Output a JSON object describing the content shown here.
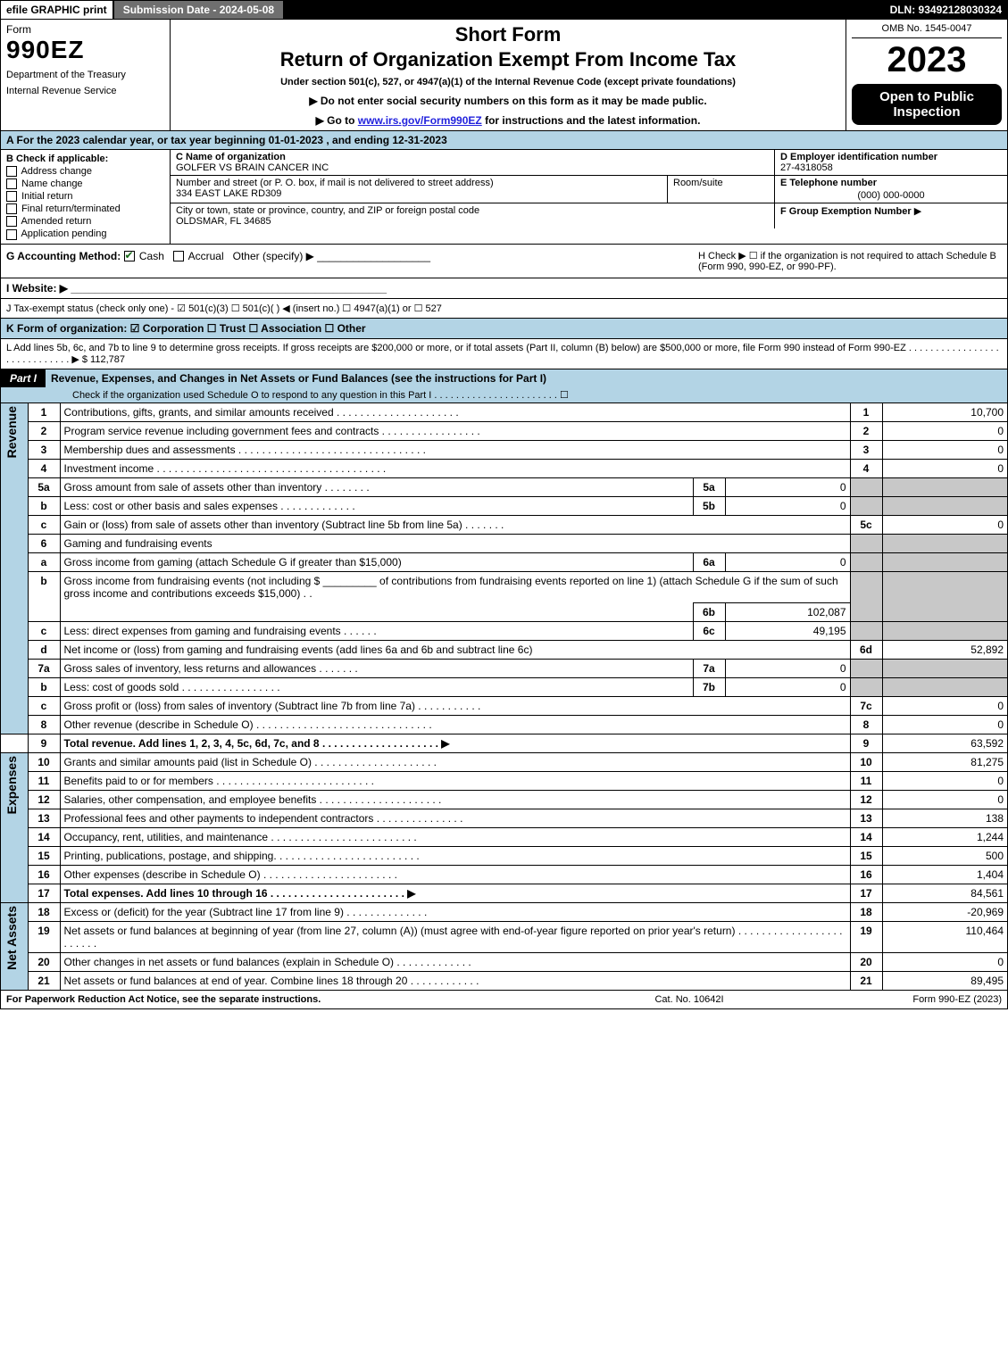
{
  "topbar": {
    "efile": "efile GRAPHIC print",
    "submission": "Submission Date - 2024-05-08",
    "dln": "DLN: 93492128030324"
  },
  "header": {
    "form_label": "Form",
    "form_num": "990EZ",
    "dept1": "Department of the Treasury",
    "dept2": "Internal Revenue Service",
    "shortform": "Short Form",
    "title2": "Return of Organization Exempt From Income Tax",
    "sub": "Under section 501(c), 527, or 4947(a)(1) of the Internal Revenue Code (except private foundations)",
    "sub2": "▶ Do not enter social security numbers on this form as it may be made public.",
    "sub3_pre": "▶ Go to ",
    "sub3_link": "www.irs.gov/Form990EZ",
    "sub3_post": " for instructions and the latest information.",
    "omb": "OMB No. 1545-0047",
    "year": "2023",
    "open": "Open to Public Inspection"
  },
  "a": "A  For the 2023 calendar year, or tax year beginning 01-01-2023 , and ending 12-31-2023",
  "b": {
    "label": "B  Check if applicable:",
    "opts": [
      "Address change",
      "Name change",
      "Initial return",
      "Final return/terminated",
      "Amended return",
      "Application pending"
    ]
  },
  "c": {
    "name_lbl": "C Name of organization",
    "name": "GOLFER VS BRAIN CANCER INC",
    "addr_lbl": "Number and street (or P. O. box, if mail is not delivered to street address)",
    "addr": "334 EAST LAKE RD309",
    "room_lbl": "Room/suite",
    "city_lbl": "City or town, state or province, country, and ZIP or foreign postal code",
    "city": "OLDSMAR, FL  34685"
  },
  "d": {
    "lbl": "D Employer identification number",
    "val": "27-4318058"
  },
  "e": {
    "lbl": "E Telephone number",
    "val": "(000) 000-0000"
  },
  "f": {
    "lbl": "F Group Exemption Number",
    "arrow": "▶"
  },
  "g": {
    "label": "G Accounting Method:",
    "cash": "Cash",
    "accrual": "Accrual",
    "other": "Other (specify) ▶"
  },
  "h": "H  Check ▶ ☐ if the organization is not required to attach Schedule B (Form 990, 990-EZ, or 990-PF).",
  "i": "I Website: ▶",
  "j": "J Tax-exempt status (check only one) - ☑ 501(c)(3)  ☐ 501(c)(  ) ◀ (insert no.)  ☐ 4947(a)(1) or  ☐ 527",
  "k": "K Form of organization:  ☑ Corporation  ☐ Trust  ☐ Association  ☐ Other",
  "l": {
    "text": "L Add lines 5b, 6c, and 7b to line 9 to determine gross receipts. If gross receipts are $200,000 or more, or if total assets (Part II, column (B) below) are $500,000 or more, file Form 990 instead of Form 990-EZ . . . . . . . . . . . . . . . . . . . . . . . . . . . . . ▶ $ ",
    "amount": "112,787"
  },
  "part1": {
    "tag": "Part I",
    "title": "Revenue, Expenses, and Changes in Net Assets or Fund Balances (see the instructions for Part I)",
    "sub": "Check if the organization used Schedule O to respond to any question in this Part I . . . . . . . . . . . . . . . . . . . . . . . ☐"
  },
  "side": {
    "rev": "Revenue",
    "exp": "Expenses",
    "na": "Net Assets"
  },
  "rows": {
    "r1": {
      "n": "1",
      "d": "Contributions, gifts, grants, and similar amounts received . . . . . . . . . . . . . . . . . . . . .",
      "on": "1",
      "ov": "10,700"
    },
    "r2": {
      "n": "2",
      "d": "Program service revenue including government fees and contracts . . . . . . . . . . . . . . . . .",
      "on": "2",
      "ov": "0"
    },
    "r3": {
      "n": "3",
      "d": "Membership dues and assessments . . . . . . . . . . . . . . . . . . . . . . . . . . . . . . . .",
      "on": "3",
      "ov": "0"
    },
    "r4": {
      "n": "4",
      "d": "Investment income . . . . . . . . . . . . . . . . . . . . . . . . . . . . . . . . . . . . . . .",
      "on": "4",
      "ov": "0"
    },
    "r5a": {
      "n": "5a",
      "d": "Gross amount from sale of assets other than inventory . . . . . . . .",
      "in": "5a",
      "iv": "0"
    },
    "r5b": {
      "n": "b",
      "d": "Less: cost or other basis and sales expenses . . . . . . . . . . . . .",
      "in": "5b",
      "iv": "0"
    },
    "r5c": {
      "n": "c",
      "d": "Gain or (loss) from sale of assets other than inventory (Subtract line 5b from line 5a) . . . . . . .",
      "on": "5c",
      "ov": "0"
    },
    "r6": {
      "n": "6",
      "d": "Gaming and fundraising events"
    },
    "r6a": {
      "n": "a",
      "d": "Gross income from gaming (attach Schedule G if greater than $15,000)",
      "in": "6a",
      "iv": "0"
    },
    "r6b": {
      "n": "b",
      "d1": "Gross income from fundraising events (not including $",
      "d2": "of contributions from fundraising events reported on line 1) (attach Schedule G if the sum of such gross income and contributions exceeds $15,000)    .  .",
      "in": "6b",
      "iv": "102,087"
    },
    "r6c": {
      "n": "c",
      "d": "Less: direct expenses from gaming and fundraising events . . . . . .",
      "in": "6c",
      "iv": "49,195"
    },
    "r6d": {
      "n": "d",
      "d": "Net income or (loss) from gaming and fundraising events (add lines 6a and 6b and subtract line 6c)",
      "on": "6d",
      "ov": "52,892"
    },
    "r7a": {
      "n": "7a",
      "d": "Gross sales of inventory, less returns and allowances  . . . . . . .",
      "in": "7a",
      "iv": "0"
    },
    "r7b": {
      "n": "b",
      "d": "Less: cost of goods sold         . . . . . . . . . . . . . . . . .",
      "in": "7b",
      "iv": "0"
    },
    "r7c": {
      "n": "c",
      "d": "Gross profit or (loss) from sales of inventory (Subtract line 7b from line 7a) . . . . . . . . . . .",
      "on": "7c",
      "ov": "0"
    },
    "r8": {
      "n": "8",
      "d": "Other revenue (describe in Schedule O) . . . . . . . . . . . . . . . . . . . . . . . . . . . . . .",
      "on": "8",
      "ov": "0"
    },
    "r9": {
      "n": "9",
      "d": "Total revenue. Add lines 1, 2, 3, 4, 5c, 6d, 7c, and 8  . . . . . . . . . . . . . . . . . . . . ▶",
      "on": "9",
      "ov": "63,592"
    },
    "r10": {
      "n": "10",
      "d": "Grants and similar amounts paid (list in Schedule O) . . . . . . . . . . . . . . . . . . . . .",
      "on": "10",
      "ov": "81,275"
    },
    "r11": {
      "n": "11",
      "d": "Benefits paid to or for members      . . . . . . . . . . . . . . . . . . . . . . . . . . .",
      "on": "11",
      "ov": "0"
    },
    "r12": {
      "n": "12",
      "d": "Salaries, other compensation, and employee benefits . . . . . . . . . . . . . . . . . . . . .",
      "on": "12",
      "ov": "0"
    },
    "r13": {
      "n": "13",
      "d": "Professional fees and other payments to independent contractors . . . . . . . . . . . . . . .",
      "on": "13",
      "ov": "138"
    },
    "r14": {
      "n": "14",
      "d": "Occupancy, rent, utilities, and maintenance . . . . . . . . . . . . . . . . . . . . . . . . .",
      "on": "14",
      "ov": "1,244"
    },
    "r15": {
      "n": "15",
      "d": "Printing, publications, postage, and shipping. . . . . . . . . . . . . . . . . . . . . . . . .",
      "on": "15",
      "ov": "500"
    },
    "r16": {
      "n": "16",
      "d": "Other expenses (describe in Schedule O)      . . . . . . . . . . . . . . . . . . . . . . .",
      "on": "16",
      "ov": "1,404"
    },
    "r17": {
      "n": "17",
      "d": "Total expenses. Add lines 10 through 16     . . . . . . . . . . . . . . . . . . . . . . . ▶",
      "on": "17",
      "ov": "84,561"
    },
    "r18": {
      "n": "18",
      "d": "Excess or (deficit) for the year (Subtract line 17 from line 9)        . . . . . . . . . . . . . .",
      "on": "18",
      "ov": "-20,969"
    },
    "r19": {
      "n": "19",
      "d": "Net assets or fund balances at beginning of year (from line 27, column (A)) (must agree with end-of-year figure reported on prior year's return) . . . . . . . . . . . . . . . . . . . . . . . .",
      "on": "19",
      "ov": "110,464"
    },
    "r20": {
      "n": "20",
      "d": "Other changes in net assets or fund balances (explain in Schedule O) . . . . . . . . . . . . .",
      "on": "20",
      "ov": "0"
    },
    "r21": {
      "n": "21",
      "d": "Net assets or fund balances at end of year. Combine lines 18 through 20 . . . . . . . . . . . .",
      "on": "21",
      "ov": "89,495"
    }
  },
  "footer": {
    "f1": "For Paperwork Reduction Act Notice, see the separate instructions.",
    "f2": "Cat. No. 10642I",
    "f3": "Form 990-EZ (2023)"
  },
  "colors": {
    "band": "#b3d4e5",
    "grey": "#c8c8c8",
    "link": "#2323dd",
    "check": "#1a6b1a"
  }
}
